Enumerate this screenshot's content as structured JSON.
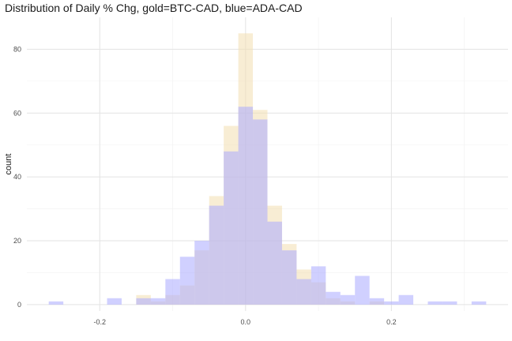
{
  "chart_data": {
    "type": "histogram",
    "title": "Distribution of Daily % Chg, gold=BTC-CAD, blue=ADA-CAD",
    "xlabel": "",
    "ylabel": "count",
    "xlim": [
      -0.3,
      0.36
    ],
    "ylim": [
      -2,
      90
    ],
    "x_ticks": [
      -0.2,
      0.0,
      0.2
    ],
    "x_tick_labels": [
      "-0.2",
      "0.0",
      "0.2"
    ],
    "y_ticks": [
      0,
      20,
      40,
      60,
      80
    ],
    "y_tick_labels": [
      "0",
      "20",
      "40",
      "60",
      "80"
    ],
    "bin_width": 0.02,
    "grid": true,
    "legend": "none",
    "colors": {
      "gold": "#F3DFB0",
      "blue": "#A9A9FF",
      "overlap": "#C8B6D6"
    },
    "series": [
      {
        "label": "BTC-CAD",
        "color": "gold",
        "bin_centers": [
          -0.14,
          -0.12,
          -0.1,
          -0.08,
          -0.06,
          -0.04,
          -0.02,
          0.0,
          0.02,
          0.04,
          0.06,
          0.08,
          0.1,
          0.12,
          0.14,
          0.18
        ],
        "values": [
          3,
          1,
          3,
          6,
          17,
          34,
          56,
          85,
          61,
          31,
          19,
          11,
          7,
          2,
          1,
          1
        ]
      },
      {
        "label": "ADA-CAD",
        "color": "blue",
        "bin_centers": [
          -0.26,
          -0.18,
          -0.14,
          -0.12,
          -0.1,
          -0.08,
          -0.06,
          -0.04,
          -0.02,
          0.0,
          0.02,
          0.04,
          0.06,
          0.08,
          0.1,
          0.12,
          0.14,
          0.16,
          0.18,
          0.2,
          0.22,
          0.26,
          0.28,
          0.32
        ],
        "values": [
          1,
          2,
          2,
          2,
          8,
          15,
          20,
          31,
          48,
          62,
          58,
          26,
          17,
          8,
          12,
          4,
          3,
          9,
          2,
          1,
          3,
          1,
          1,
          1
        ]
      }
    ]
  }
}
